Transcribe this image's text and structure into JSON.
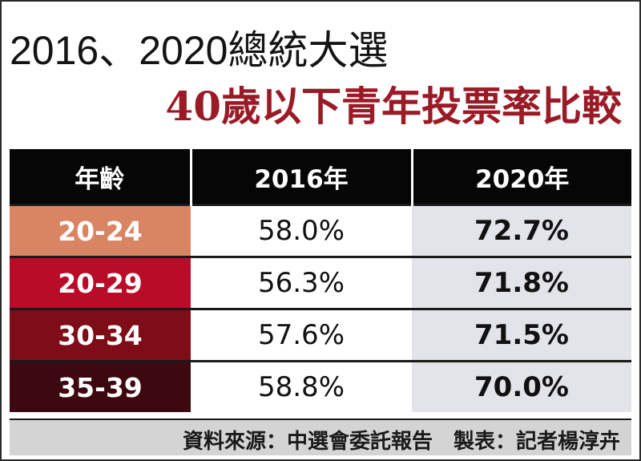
{
  "header": {
    "title_line1": "2016、2020總統大選",
    "title_line2": "40歲以下青年投票率比較"
  },
  "colors": {
    "title_accent": "#9a1a26",
    "header_bg": "#060606",
    "v2020_bg": "#e3e4ea",
    "row_colors": [
      "#d98564",
      "#b90c28",
      "#7e0d18",
      "#3e0810"
    ]
  },
  "chart_data": {
    "type": "table",
    "title": "40歲以下青年投票率比較",
    "columns": [
      "年齡",
      "2016年",
      "2020年"
    ],
    "rows": [
      {
        "age": "20-24",
        "v2016": "58.0%",
        "v2020": "72.7%"
      },
      {
        "age": "20-29",
        "v2016": "56.3%",
        "v2020": "71.8%"
      },
      {
        "age": "30-34",
        "v2016": "57.6%",
        "v2020": "71.5%"
      },
      {
        "age": "35-39",
        "v2016": "58.8%",
        "v2020": "70.0%"
      }
    ]
  },
  "footer": {
    "text": "資料來源：中選會委託報告　製表：記者楊淳卉"
  }
}
